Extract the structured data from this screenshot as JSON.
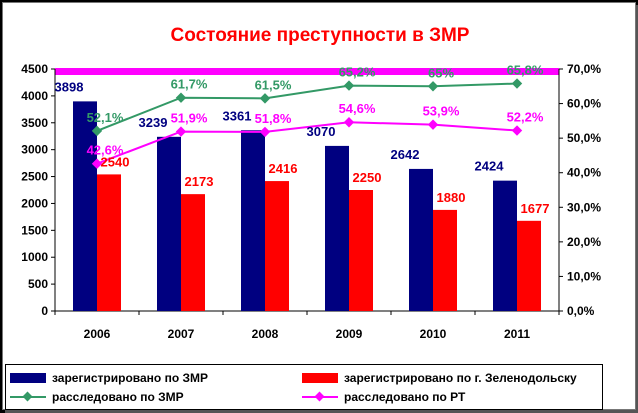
{
  "chart_data": {
    "type": "bar",
    "title": "Состояние преступности в ЗМР",
    "categories": [
      "2006",
      "2007",
      "2008",
      "2009",
      "2010",
      "2011"
    ],
    "y_left": {
      "min": 0,
      "max": 4500,
      "step": 500,
      "ticks": [
        "0",
        "500",
        "1000",
        "1500",
        "2000",
        "2500",
        "3000",
        "3500",
        "4000",
        "4500"
      ]
    },
    "y_right": {
      "min": 0,
      "max": 70,
      "step": 10,
      "ticks": [
        "0,0%",
        "10,0%",
        "20,0%",
        "30,0%",
        "40,0%",
        "50,0%",
        "60,0%",
        "70,0%"
      ]
    },
    "bar_series": [
      {
        "name": "зарегистрировано по ЗМР",
        "color": "#000080",
        "label_color": "#000080",
        "values": [
          3898,
          3239,
          3361,
          3070,
          2642,
          2424
        ],
        "labels": [
          "3898",
          "3239",
          "3361",
          "3070",
          "2642",
          "2424"
        ]
      },
      {
        "name": "зарегистрировано по г. Зеленодольску",
        "color": "#ff0000",
        "label_color": "#ff0000",
        "values": [
          2540,
          2173,
          2416,
          2250,
          1880,
          1677
        ],
        "labels": [
          "2540",
          "2173",
          "2416",
          "2250",
          "1880",
          "1677"
        ]
      }
    ],
    "line_series": [
      {
        "name": "расследовано по ЗМР",
        "color": "#339966",
        "values": [
          52.1,
          61.7,
          61.5,
          65.2,
          65,
          65.8
        ],
        "labels": [
          "52,1%",
          "61,7%",
          "61,5%",
          "65,2%",
          "65%",
          "65,8%"
        ]
      },
      {
        "name": "расследовано по РТ",
        "color": "#ff00ff",
        "values": [
          42.6,
          51.9,
          51.8,
          54.6,
          53.9,
          52.2
        ],
        "labels": [
          "42,6%",
          "51,9%",
          "51,8%",
          "54,6%",
          "53,9%",
          "52,2%"
        ]
      }
    ],
    "highlight_band_color": "#ff00ff",
    "title_color": "#ff0000",
    "legend_position": "bottom",
    "grid": false
  }
}
